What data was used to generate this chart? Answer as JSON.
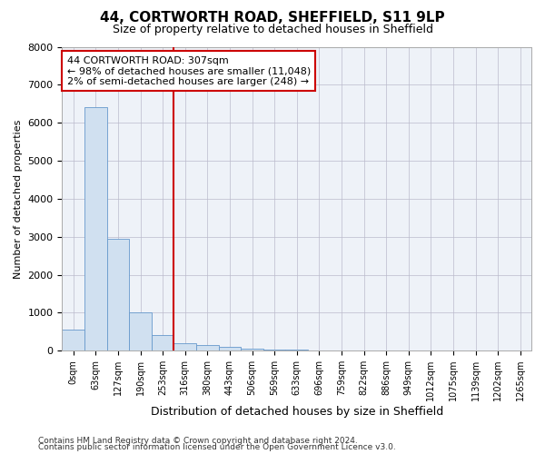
{
  "title1": "44, CORTWORTH ROAD, SHEFFIELD, S11 9LP",
  "title2": "Size of property relative to detached houses in Sheffield",
  "xlabel": "Distribution of detached houses by size in Sheffield",
  "ylabel": "Number of detached properties",
  "bar_color": "#d0e0f0",
  "bar_edge_color": "#6699cc",
  "bar_heights": [
    560,
    6400,
    2950,
    1000,
    400,
    200,
    150,
    100,
    50,
    30,
    20,
    10,
    5,
    3,
    2,
    2,
    1,
    1,
    1,
    1,
    0
  ],
  "bin_labels": [
    "0sqm",
    "63sqm",
    "127sqm",
    "190sqm",
    "253sqm",
    "316sqm",
    "380sqm",
    "443sqm",
    "506sqm",
    "569sqm",
    "633sqm",
    "696sqm",
    "759sqm",
    "822sqm",
    "886sqm",
    "949sqm",
    "1012sqm",
    "1075sqm",
    "1139sqm",
    "1202sqm",
    "1265sqm"
  ],
  "property_line_x": 5,
  "property_line_color": "#cc0000",
  "annotation_text": "44 CORTWORTH ROAD: 307sqm\n← 98% of detached houses are smaller (11,048)\n2% of semi-detached houses are larger (248) →",
  "annotation_box_color": "#cc0000",
  "ylim": [
    0,
    8000
  ],
  "yticks": [
    0,
    1000,
    2000,
    3000,
    4000,
    5000,
    6000,
    7000,
    8000
  ],
  "footer1": "Contains HM Land Registry data © Crown copyright and database right 2024.",
  "footer2": "Contains public sector information licensed under the Open Government Licence v3.0.",
  "background_color": "#ffffff",
  "plot_bg_color": "#eef2f8"
}
